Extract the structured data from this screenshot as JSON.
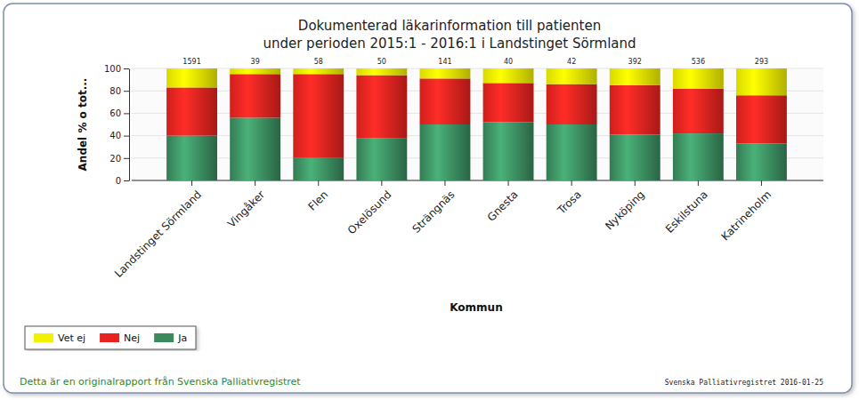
{
  "chart_data": {
    "type": "bar",
    "stacked": true,
    "title": "Dokumenterad läkarinformation till patienten",
    "subtitle": "under perioden 2015:1 - 2016:1 i Landstinget Sörmland",
    "x_label": "Kommun",
    "y_label": "Andel % o tot...",
    "categories": [
      "Landstinget Sörmland",
      "Vingåker",
      "Flen",
      "Oxelösund",
      "Strängnäs",
      "Gnesta",
      "Trosa",
      "Nyköping",
      "Eskilstuna",
      "Katrineholm"
    ],
    "series": [
      {
        "name": "Ja",
        "color": "#3a8a5e",
        "values": [
          40,
          56,
          20,
          38,
          50,
          52,
          50,
          41,
          42,
          33
        ]
      },
      {
        "name": "Nej",
        "color": "#e8231f",
        "values": [
          43,
          39,
          75,
          56,
          41,
          35,
          36,
          44,
          40,
          43
        ]
      },
      {
        "name": "Vet ej",
        "color": "#f2f200",
        "values": [
          17,
          5,
          5,
          6,
          9,
          13,
          14,
          15,
          18,
          24
        ]
      }
    ],
    "totals": [
      1591,
      39,
      58,
      50,
      141,
      40,
      42,
      392,
      536,
      293
    ],
    "ylim": [
      0,
      100
    ],
    "yticks": [
      0,
      20,
      40,
      60,
      80,
      100
    ],
    "grid": true,
    "legend": "bottom-left",
    "annotations": [
      "Detta är en originalrapport från Svenska Palliativregistret",
      "Svenska Palliativregistret 2016-01-25"
    ]
  }
}
